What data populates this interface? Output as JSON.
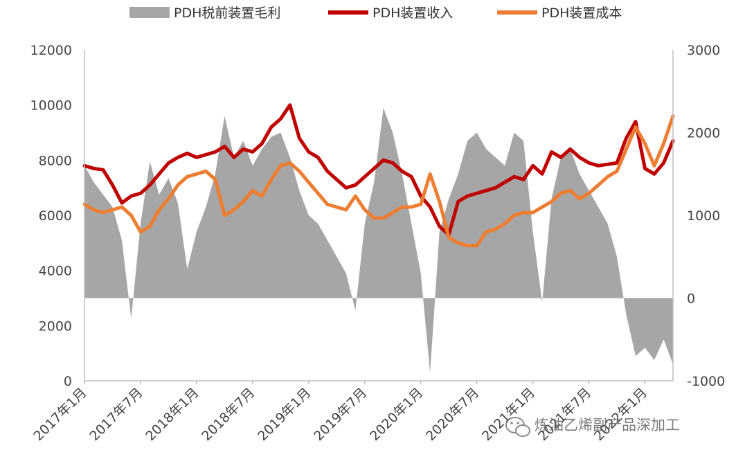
{
  "chart_data": {
    "type": "line",
    "title": "",
    "x_tick_labels": [
      "2017年1月",
      "2017年7月",
      "2018年1月",
      "2018年7月",
      "2019年1月",
      "2019年7月",
      "2020年1月",
      "2020年7月",
      "2021年1月",
      "2021年7月",
      "2022年1月"
    ],
    "x_range": [
      "2017-01",
      "2022-04"
    ],
    "left_axis": {
      "label": "",
      "ticks": [
        "0",
        "2000",
        "4000",
        "6000",
        "8000",
        "10000",
        "12000"
      ],
      "ylim": [
        0,
        12000
      ]
    },
    "right_axis": {
      "label": "",
      "ticks": [
        "-1000",
        "0",
        "1000",
        "2000",
        "3000"
      ],
      "ylim": [
        -1000,
        3000
      ]
    },
    "legend": {
      "position": "top"
    },
    "series": [
      {
        "name": "PDH税前装置毛利",
        "axis": "right",
        "style": "area",
        "color": "#a6a6a6",
        "points": [
          [
            "2017-01",
            1600
          ],
          [
            "2017-02",
            1400
          ],
          [
            "2017-03",
            1250
          ],
          [
            "2017-04",
            1100
          ],
          [
            "2017-05",
            700
          ],
          [
            "2017-06",
            -250
          ],
          [
            "2017-07",
            900
          ],
          [
            "2017-08",
            1650
          ],
          [
            "2017-09",
            1250
          ],
          [
            "2017-10",
            1450
          ],
          [
            "2017-11",
            1150
          ],
          [
            "2017-12",
            350
          ],
          [
            "2018-01",
            800
          ],
          [
            "2018-02",
            1100
          ],
          [
            "2018-03",
            1500
          ],
          [
            "2018-04",
            2200
          ],
          [
            "2018-05",
            1700
          ],
          [
            "2018-06",
            1900
          ],
          [
            "2018-07",
            1600
          ],
          [
            "2018-08",
            1800
          ],
          [
            "2018-09",
            1950
          ],
          [
            "2018-10",
            2000
          ],
          [
            "2018-11",
            1700
          ],
          [
            "2018-12",
            1300
          ],
          [
            "2019-01",
            1000
          ],
          [
            "2019-02",
            900
          ],
          [
            "2019-03",
            700
          ],
          [
            "2019-04",
            500
          ],
          [
            "2019-05",
            300
          ],
          [
            "2019-06",
            -150
          ],
          [
            "2019-07",
            900
          ],
          [
            "2019-08",
            1400
          ],
          [
            "2019-09",
            2300
          ],
          [
            "2019-10",
            2000
          ],
          [
            "2019-11",
            1500
          ],
          [
            "2019-12",
            900
          ],
          [
            "2020-01",
            300
          ],
          [
            "2020-02",
            -900
          ],
          [
            "2020-03",
            800
          ],
          [
            "2020-04",
            1200
          ],
          [
            "2020-05",
            1500
          ],
          [
            "2020-06",
            1900
          ],
          [
            "2020-07",
            2000
          ],
          [
            "2020-08",
            1800
          ],
          [
            "2020-09",
            1700
          ],
          [
            "2020-10",
            1600
          ],
          [
            "2020-11",
            2000
          ],
          [
            "2020-12",
            1900
          ],
          [
            "2021-01",
            800
          ],
          [
            "2021-02",
            -50
          ],
          [
            "2021-03",
            1200
          ],
          [
            "2021-04",
            1700
          ],
          [
            "2021-05",
            1800
          ],
          [
            "2021-06",
            1500
          ],
          [
            "2021-07",
            1300
          ],
          [
            "2021-08",
            1100
          ],
          [
            "2021-09",
            900
          ],
          [
            "2021-10",
            500
          ],
          [
            "2021-11",
            -200
          ],
          [
            "2021-12",
            -700
          ],
          [
            "2022-01",
            -600
          ],
          [
            "2022-02",
            -750
          ],
          [
            "2022-03",
            -500
          ],
          [
            "2022-04",
            -800
          ]
        ]
      },
      {
        "name": "PDH装置收入",
        "axis": "left",
        "style": "line",
        "color": "#c00000",
        "points": [
          [
            "2017-01",
            7800
          ],
          [
            "2017-02",
            7700
          ],
          [
            "2017-03",
            7650
          ],
          [
            "2017-04",
            7100
          ],
          [
            "2017-05",
            6450
          ],
          [
            "2017-06",
            6700
          ],
          [
            "2017-07",
            6800
          ],
          [
            "2017-08",
            7100
          ],
          [
            "2017-09",
            7500
          ],
          [
            "2017-10",
            7900
          ],
          [
            "2017-11",
            8100
          ],
          [
            "2017-12",
            8250
          ],
          [
            "2018-01",
            8100
          ],
          [
            "2018-02",
            8200
          ],
          [
            "2018-03",
            8300
          ],
          [
            "2018-04",
            8500
          ],
          [
            "2018-05",
            8100
          ],
          [
            "2018-06",
            8400
          ],
          [
            "2018-07",
            8300
          ],
          [
            "2018-08",
            8600
          ],
          [
            "2018-09",
            9200
          ],
          [
            "2018-10",
            9500
          ],
          [
            "2018-11",
            10000
          ],
          [
            "2018-12",
            8800
          ],
          [
            "2019-01",
            8300
          ],
          [
            "2019-02",
            8100
          ],
          [
            "2019-03",
            7600
          ],
          [
            "2019-04",
            7300
          ],
          [
            "2019-05",
            7000
          ],
          [
            "2019-06",
            7100
          ],
          [
            "2019-07",
            7400
          ],
          [
            "2019-08",
            7700
          ],
          [
            "2019-09",
            8000
          ],
          [
            "2019-10",
            7900
          ],
          [
            "2019-11",
            7600
          ],
          [
            "2019-12",
            7400
          ],
          [
            "2020-01",
            6700
          ],
          [
            "2020-02",
            6300
          ],
          [
            "2020-03",
            5600
          ],
          [
            "2020-04",
            5300
          ],
          [
            "2020-05",
            6500
          ],
          [
            "2020-06",
            6700
          ],
          [
            "2020-07",
            6800
          ],
          [
            "2020-08",
            6900
          ],
          [
            "2020-09",
            7000
          ],
          [
            "2020-10",
            7200
          ],
          [
            "2020-11",
            7400
          ],
          [
            "2020-12",
            7300
          ],
          [
            "2021-01",
            7800
          ],
          [
            "2021-02",
            7500
          ],
          [
            "2021-03",
            8300
          ],
          [
            "2021-04",
            8100
          ],
          [
            "2021-05",
            8400
          ],
          [
            "2021-06",
            8100
          ],
          [
            "2021-07",
            7900
          ],
          [
            "2021-08",
            7800
          ],
          [
            "2021-09",
            7850
          ],
          [
            "2021-10",
            7900
          ],
          [
            "2021-11",
            8800
          ],
          [
            "2021-12",
            9400
          ],
          [
            "2022-01",
            7700
          ],
          [
            "2022-02",
            7500
          ],
          [
            "2022-03",
            7900
          ],
          [
            "2022-04",
            8700
          ]
        ]
      },
      {
        "name": "PDH装置成本",
        "axis": "left",
        "style": "line",
        "color": "#ed7d31",
        "points": [
          [
            "2017-01",
            6400
          ],
          [
            "2017-02",
            6200
          ],
          [
            "2017-03",
            6100
          ],
          [
            "2017-04",
            6200
          ],
          [
            "2017-05",
            6300
          ],
          [
            "2017-06",
            6000
          ],
          [
            "2017-07",
            5400
          ],
          [
            "2017-08",
            5600
          ],
          [
            "2017-09",
            6200
          ],
          [
            "2017-10",
            6600
          ],
          [
            "2017-11",
            7100
          ],
          [
            "2017-12",
            7400
          ],
          [
            "2018-01",
            7500
          ],
          [
            "2018-02",
            7600
          ],
          [
            "2018-03",
            7300
          ],
          [
            "2018-04",
            6000
          ],
          [
            "2018-05",
            6200
          ],
          [
            "2018-06",
            6500
          ],
          [
            "2018-07",
            6900
          ],
          [
            "2018-08",
            6700
          ],
          [
            "2018-09",
            7300
          ],
          [
            "2018-10",
            7800
          ],
          [
            "2018-11",
            7900
          ],
          [
            "2018-12",
            7600
          ],
          [
            "2019-01",
            7200
          ],
          [
            "2019-02",
            6800
          ],
          [
            "2019-03",
            6400
          ],
          [
            "2019-04",
            6300
          ],
          [
            "2019-05",
            6200
          ],
          [
            "2019-06",
            6700
          ],
          [
            "2019-07",
            6200
          ],
          [
            "2019-08",
            5900
          ],
          [
            "2019-09",
            5900
          ],
          [
            "2019-10",
            6100
          ],
          [
            "2019-11",
            6300
          ],
          [
            "2019-12",
            6300
          ],
          [
            "2020-01",
            6400
          ],
          [
            "2020-02",
            7500
          ],
          [
            "2020-03",
            6500
          ],
          [
            "2020-04",
            5200
          ],
          [
            "2020-05",
            5000
          ],
          [
            "2020-06",
            4900
          ],
          [
            "2020-07",
            4900
          ],
          [
            "2020-08",
            5400
          ],
          [
            "2020-09",
            5500
          ],
          [
            "2020-10",
            5700
          ],
          [
            "2020-11",
            6000
          ],
          [
            "2020-12",
            6100
          ],
          [
            "2021-01",
            6100
          ],
          [
            "2021-02",
            6300
          ],
          [
            "2021-03",
            6500
          ],
          [
            "2021-04",
            6800
          ],
          [
            "2021-05",
            6900
          ],
          [
            "2021-06",
            6600
          ],
          [
            "2021-07",
            6800
          ],
          [
            "2021-08",
            7100
          ],
          [
            "2021-09",
            7400
          ],
          [
            "2021-10",
            7600
          ],
          [
            "2021-11",
            8400
          ],
          [
            "2021-12",
            9200
          ],
          [
            "2022-01",
            8600
          ],
          [
            "2022-02",
            7800
          ],
          [
            "2022-03",
            8600
          ],
          [
            "2022-04",
            9600
          ]
        ]
      }
    ]
  },
  "watermark": {
    "text": "炼油乙烯副产品深加工",
    "icon": "wechat-icon"
  }
}
